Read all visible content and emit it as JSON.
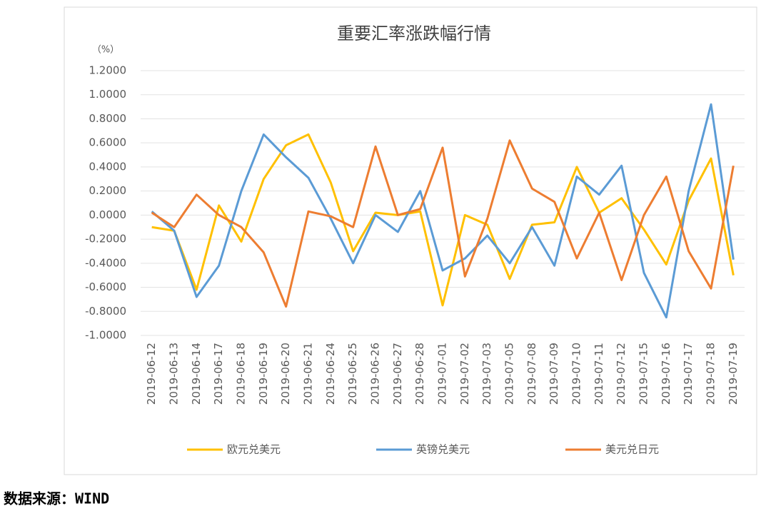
{
  "chart_data": {
    "type": "line",
    "title": "重要汇率涨跌幅行情",
    "unit_label": "（%）",
    "categories": [
      "2019-06-12",
      "2019-06-13",
      "2019-06-14",
      "2019-06-17",
      "2019-06-18",
      "2019-06-19",
      "2019-06-20",
      "2019-06-21",
      "2019-06-24",
      "2019-06-25",
      "2019-06-26",
      "2019-06-27",
      "2019-06-28",
      "2019-07-01",
      "2019-07-02",
      "2019-07-03",
      "2019-07-05",
      "2019-07-08",
      "2019-07-09",
      "2019-07-10",
      "2019-07-11",
      "2019-07-12",
      "2019-07-15",
      "2019-07-16",
      "2019-07-17",
      "2019-07-18",
      "2019-07-19"
    ],
    "series": [
      {
        "name": "欧元兑美元",
        "color": "#ffc000",
        "values": [
          -0.1,
          -0.13,
          -0.62,
          0.08,
          -0.22,
          0.3,
          0.58,
          0.67,
          0.27,
          -0.3,
          0.02,
          0.0,
          0.03,
          -0.75,
          0.0,
          -0.08,
          -0.53,
          -0.08,
          -0.06,
          0.4,
          0.02,
          0.14,
          -0.12,
          -0.41,
          0.12,
          0.47,
          -0.5
        ]
      },
      {
        "name": "英镑兑美元",
        "color": "#5b9bd5",
        "values": [
          0.03,
          -0.13,
          -0.68,
          -0.42,
          0.2,
          0.67,
          0.48,
          0.31,
          -0.03,
          -0.4,
          0.0,
          -0.14,
          0.2,
          -0.46,
          -0.36,
          -0.17,
          -0.4,
          -0.1,
          -0.42,
          0.32,
          0.17,
          0.41,
          -0.48,
          -0.85,
          0.2,
          0.92,
          -0.37
        ]
      },
      {
        "name": "美元兑日元",
        "color": "#ed7d31",
        "values": [
          0.02,
          -0.1,
          0.17,
          0.0,
          -0.1,
          -0.31,
          -0.76,
          0.03,
          -0.01,
          -0.1,
          0.57,
          0.0,
          0.05,
          0.56,
          -0.51,
          -0.03,
          0.62,
          0.22,
          0.11,
          -0.36,
          0.02,
          -0.54,
          0.0,
          0.32,
          -0.3,
          -0.61,
          0.41
        ]
      }
    ],
    "ylim": [
      -1.0,
      1.2
    ],
    "yticks": [
      {
        "value": -1.0,
        "label": "-1.0000"
      },
      {
        "value": -0.8,
        "label": "-0.8000"
      },
      {
        "value": -0.6,
        "label": "-0.6000"
      },
      {
        "value": -0.4,
        "label": "-0.4000"
      },
      {
        "value": -0.2,
        "label": "-0.2000"
      },
      {
        "value": 0,
        "label": "0.0000"
      },
      {
        "value": 0.2,
        "label": "0.2000"
      },
      {
        "value": 0.4,
        "label": "0.4000"
      },
      {
        "value": 0.6,
        "label": "0.6000"
      },
      {
        "value": 0.8,
        "label": "0.8000"
      },
      {
        "value": 1.0,
        "label": "1.0000"
      },
      {
        "value": 1.2,
        "label": "1.2000"
      }
    ],
    "grid": true
  },
  "source": "数据来源：WIND"
}
